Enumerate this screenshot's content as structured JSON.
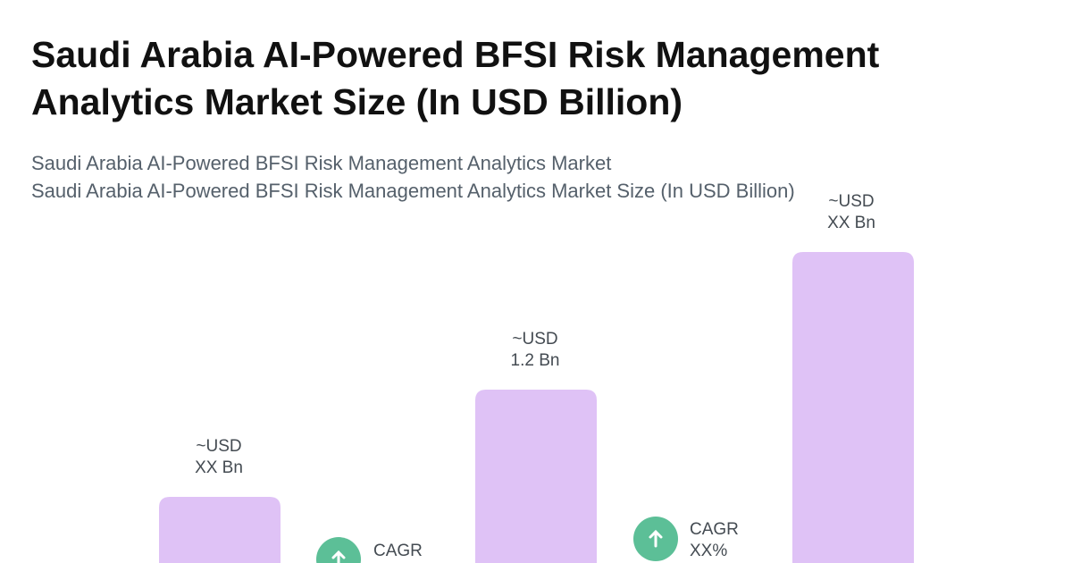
{
  "title": {
    "line1": "Saudi Arabia AI-Powered BFSI Risk Management",
    "line2": "Analytics Market Size (In USD Billion)"
  },
  "subtitle": {
    "line1": "Saudi Arabia AI-Powered BFSI Risk Management Analytics Market",
    "line2": "Saudi Arabia AI-Powered BFSI Risk Management Analytics Market Size (In USD Billion)"
  },
  "bars": [
    {
      "label1": "~USD",
      "label2": "XX Bn"
    },
    {
      "label1": "~USD",
      "label2": "1.2 Bn"
    },
    {
      "label1": "~USD",
      "label2": "XX Bn"
    }
  ],
  "cagr": [
    {
      "label1": "CAGR"
    },
    {
      "label1": "CAGR",
      "label2": "XX%"
    }
  ]
}
